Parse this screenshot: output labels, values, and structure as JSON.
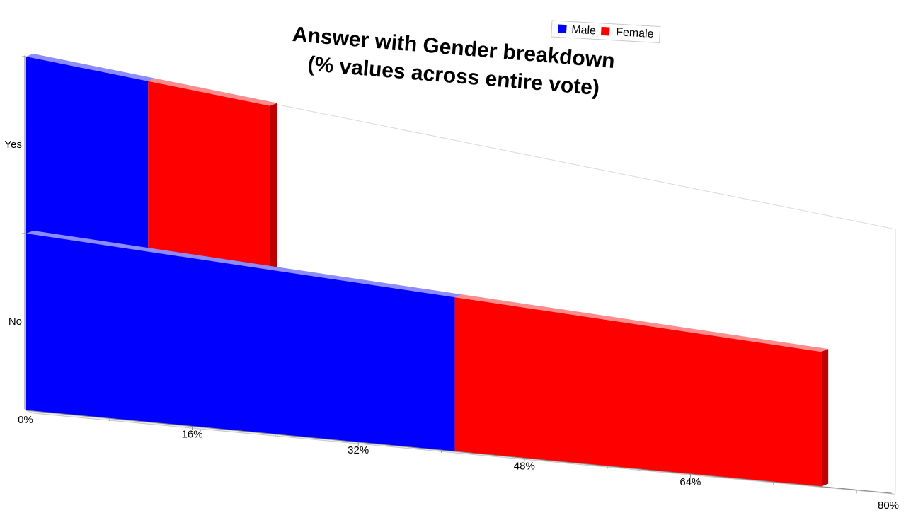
{
  "chart_data": {
    "type": "bar",
    "orientation": "horizontal",
    "stacked": true,
    "three_d": true,
    "title_lines": [
      "Answer with Gender breakdown",
      "(% values across entire vote)"
    ],
    "categories": [
      "Yes",
      "No"
    ],
    "series": [
      {
        "name": "Male",
        "color": "#0000ff",
        "values": [
          11.75,
          41.3
        ]
      },
      {
        "name": "Female",
        "color": "#ff0000",
        "values": [
          11.75,
          35.3
        ]
      }
    ],
    "xlim": [
      0,
      80
    ],
    "x_ticks": [
      0,
      16,
      32,
      48,
      64,
      80
    ],
    "x_tick_labels": [
      "0%",
      "16%",
      "32%",
      "48%",
      "64%",
      "80%"
    ],
    "legend_position": "top-right",
    "grid": false
  }
}
